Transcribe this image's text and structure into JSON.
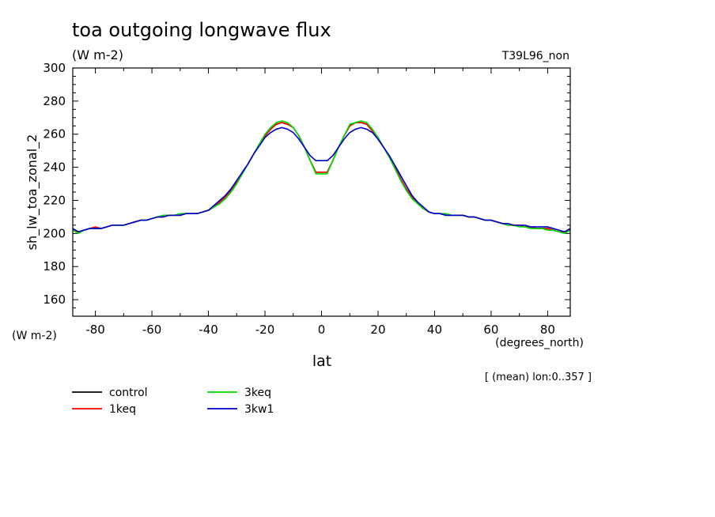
{
  "chart_data": {
    "type": "line",
    "title": "toa outgoing longwave flux",
    "subtitle": "(W m-2)",
    "experiment_label": "T39L96_non",
    "ylabel": "sh_lw_toa_zonal_2",
    "yunits": "(W m-2)",
    "xlabel": "lat",
    "xunits": "(degrees_north)",
    "footnote": "[ (mean) lon:0..357 ]",
    "xlim": [
      -88,
      88
    ],
    "ylim": [
      150,
      300
    ],
    "xticks": [
      "-80",
      "-60",
      "-40",
      "-20",
      "0",
      "20",
      "40",
      "60",
      "80"
    ],
    "yticks": [
      "160",
      "180",
      "200",
      "220",
      "240",
      "260",
      "280",
      "300"
    ],
    "grid": false,
    "legend_position": "bottom-left",
    "x": [
      -88,
      -86,
      -84,
      -82,
      -80,
      -78,
      -76,
      -74,
      -72,
      -70,
      -68,
      -66,
      -64,
      -62,
      -60,
      -58,
      -56,
      -54,
      -52,
      -50,
      -48,
      -46,
      -44,
      -42,
      -40,
      -38,
      -36,
      -34,
      -32,
      -30,
      -28,
      -26,
      -24,
      -22,
      -20,
      -18,
      -16,
      -14,
      -12,
      -10,
      -8,
      -6,
      -4,
      -2,
      0,
      2,
      4,
      6,
      8,
      10,
      12,
      14,
      16,
      18,
      20,
      22,
      24,
      26,
      28,
      30,
      32,
      34,
      36,
      38,
      40,
      42,
      44,
      46,
      48,
      50,
      52,
      54,
      56,
      58,
      60,
      62,
      64,
      66,
      68,
      70,
      72,
      74,
      76,
      78,
      80,
      82,
      84,
      86,
      88
    ],
    "series": [
      {
        "name": "control",
        "color": "#000000",
        "values": [
          202,
          201,
          202,
          203,
          203,
          203,
          204,
          205,
          205,
          205,
          206,
          207,
          208,
          208,
          209,
          210,
          210,
          211,
          211,
          211,
          212,
          212,
          212,
          213,
          214,
          216,
          219,
          222,
          226,
          231,
          237,
          242,
          248,
          254,
          259,
          263,
          266,
          267,
          266,
          264,
          259,
          252,
          244,
          237,
          237,
          237,
          244,
          252,
          259,
          265,
          267,
          267,
          266,
          262,
          257,
          252,
          246,
          240,
          233,
          227,
          222,
          218,
          215,
          213,
          212,
          212,
          211,
          211,
          211,
          211,
          210,
          210,
          209,
          208,
          208,
          207,
          206,
          205,
          205,
          205,
          204,
          204,
          203,
          203,
          203,
          202,
          201,
          201,
          202
        ]
      },
      {
        "name": "1keq",
        "color": "#ff0000",
        "values": [
          202,
          201,
          202,
          203,
          204,
          203,
          204,
          205,
          205,
          205,
          206,
          207,
          208,
          208,
          209,
          210,
          210,
          211,
          211,
          211,
          212,
          212,
          212,
          213,
          214,
          216,
          219,
          222,
          226,
          231,
          237,
          242,
          248,
          254,
          259,
          263,
          266,
          267,
          266,
          264,
          259,
          252,
          244,
          237,
          237,
          237,
          244,
          252,
          259,
          265,
          267,
          267,
          266,
          262,
          257,
          252,
          246,
          240,
          233,
          227,
          222,
          218,
          215,
          213,
          212,
          212,
          211,
          211,
          211,
          211,
          210,
          210,
          209,
          208,
          208,
          207,
          206,
          205,
          205,
          205,
          204,
          204,
          203,
          203,
          203,
          202,
          201,
          201,
          202
        ]
      },
      {
        "name": "3keq",
        "color": "#00dd00",
        "values": [
          202,
          200,
          202,
          203,
          203,
          203,
          204,
          205,
          205,
          205,
          206,
          207,
          208,
          208,
          209,
          210,
          211,
          211,
          211,
          212,
          212,
          212,
          212,
          213,
          214,
          216,
          218,
          221,
          225,
          230,
          236,
          242,
          248,
          254,
          260,
          264,
          267,
          268,
          267,
          264,
          259,
          252,
          244,
          236,
          236,
          236,
          244,
          252,
          259,
          266,
          267,
          268,
          267,
          263,
          258,
          252,
          246,
          239,
          232,
          226,
          221,
          218,
          215,
          213,
          212,
          212,
          212,
          211,
          211,
          211,
          210,
          210,
          209,
          208,
          208,
          207,
          206,
          205,
          205,
          204,
          204,
          203,
          203,
          203,
          202,
          202,
          201,
          200,
          202
        ]
      },
      {
        "name": "3kw1",
        "color": "#0000cc",
        "values": [
          203,
          201,
          202,
          203,
          203,
          203,
          204,
          205,
          205,
          205,
          206,
          207,
          208,
          208,
          209,
          210,
          210,
          211,
          211,
          211,
          212,
          212,
          212,
          213,
          214,
          217,
          220,
          223,
          227,
          232,
          237,
          242,
          248,
          253,
          258,
          261,
          263,
          264,
          263,
          261,
          257,
          252,
          247,
          244,
          244,
          244,
          247,
          252,
          257,
          261,
          263,
          264,
          263,
          261,
          257,
          252,
          247,
          241,
          235,
          229,
          223,
          219,
          216,
          213,
          212,
          212,
          211,
          211,
          211,
          211,
          210,
          210,
          209,
          208,
          208,
          207,
          206,
          206,
          205,
          205,
          205,
          204,
          204,
          204,
          204,
          203,
          202,
          201,
          203
        ]
      }
    ]
  }
}
